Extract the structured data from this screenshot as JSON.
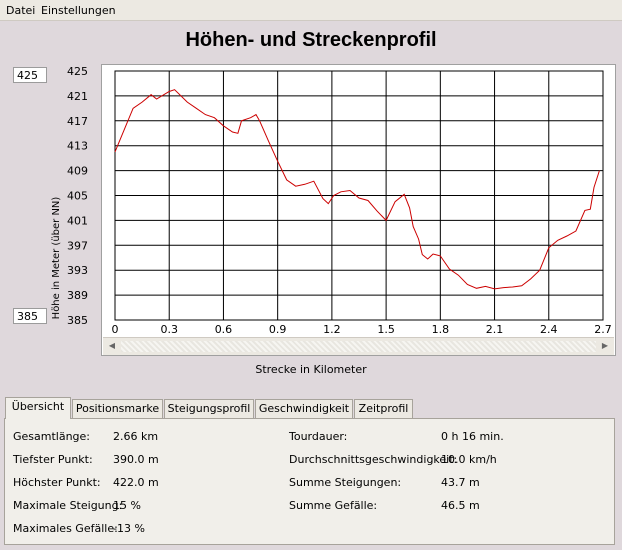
{
  "menu": {
    "file": "Datei",
    "settings": "Einstellungen"
  },
  "title": "Höhen- und Streckenprofil",
  "y_max_box": "425",
  "y_min_box": "385",
  "tabs": [
    "Übersicht",
    "Positionsmarke",
    "Steigungsprofil",
    "Geschwindigkeit",
    "Zeitprofil"
  ],
  "overview": {
    "left": [
      {
        "label": "Gesamtlänge:",
        "value": "2.66 km"
      },
      {
        "label": "Tiefster Punkt:",
        "value": "390.0 m"
      },
      {
        "label": "Höchster Punkt:",
        "value": "422.0 m"
      },
      {
        "label": "Maximale Steigung:",
        "value": "15 %"
      },
      {
        "label": "Maximales Gefälle:",
        "value": "-13 %"
      }
    ],
    "right": [
      {
        "label": "Tourdauer:",
        "value": "0 h 16 min."
      },
      {
        "label": "Durchschnittsgeschwindigkeit:",
        "value": "10.0 km/h"
      },
      {
        "label": "Summe Steigungen:",
        "value": "43.7 m"
      },
      {
        "label": "Summe Gefälle:",
        "value": "46.5 m"
      }
    ]
  },
  "colors": {
    "line": "#cc0000",
    "grid": "#000000"
  },
  "chart_data": {
    "type": "line",
    "xlabel": "Strecke in Kilometer",
    "ylabel": "Höhe in Meter (über NN)",
    "xlim": [
      0,
      2.7
    ],
    "ylim": [
      385,
      425
    ],
    "xticks": [
      "0",
      "0.3",
      "0.6",
      "0.9",
      "1.2",
      "1.5",
      "1.8",
      "2.1",
      "2.4",
      "2.7"
    ],
    "yticks": [
      "425",
      "421",
      "417",
      "413",
      "409",
      "405",
      "401",
      "397",
      "393",
      "389",
      "385"
    ],
    "grid": true,
    "series": [
      {
        "x": [
          0,
          0.1,
          0.15,
          0.2,
          0.23,
          0.3,
          0.33,
          0.4,
          0.45,
          0.5,
          0.55,
          0.6,
          0.65,
          0.68,
          0.7,
          0.75,
          0.78,
          0.8,
          0.85,
          0.9,
          0.95,
          1.0,
          1.05,
          1.1,
          1.15,
          1.18,
          1.21,
          1.25,
          1.3,
          1.35,
          1.4,
          1.45,
          1.5,
          1.55,
          1.6,
          1.63,
          1.65,
          1.68,
          1.7,
          1.73,
          1.76,
          1.8,
          1.85,
          1.9,
          1.95,
          2.0,
          2.05,
          2.1,
          2.15,
          2.2,
          2.25,
          2.3,
          2.35,
          2.4,
          2.45,
          2.5,
          2.55,
          2.6,
          2.63,
          2.65,
          2.68
        ],
        "y": [
          412,
          419,
          420,
          421.2,
          420.5,
          421.7,
          422,
          420,
          419,
          418,
          417.5,
          416.2,
          415.2,
          415,
          417,
          417.5,
          418,
          417,
          413.7,
          410.5,
          407.5,
          406.5,
          406.8,
          407.3,
          404.5,
          403.7,
          405,
          405.6,
          405.8,
          404.6,
          404.2,
          402.5,
          401,
          404,
          405.2,
          403,
          400,
          398,
          395.5,
          394.8,
          395.6,
          395.3,
          393.2,
          392.2,
          390.7,
          390.1,
          390.4,
          390,
          390.2,
          390.3,
          390.5,
          391.6,
          393,
          396.6,
          397.8,
          398.5,
          399.3,
          402.6,
          402.8,
          406.3,
          409
        ]
      }
    ]
  }
}
